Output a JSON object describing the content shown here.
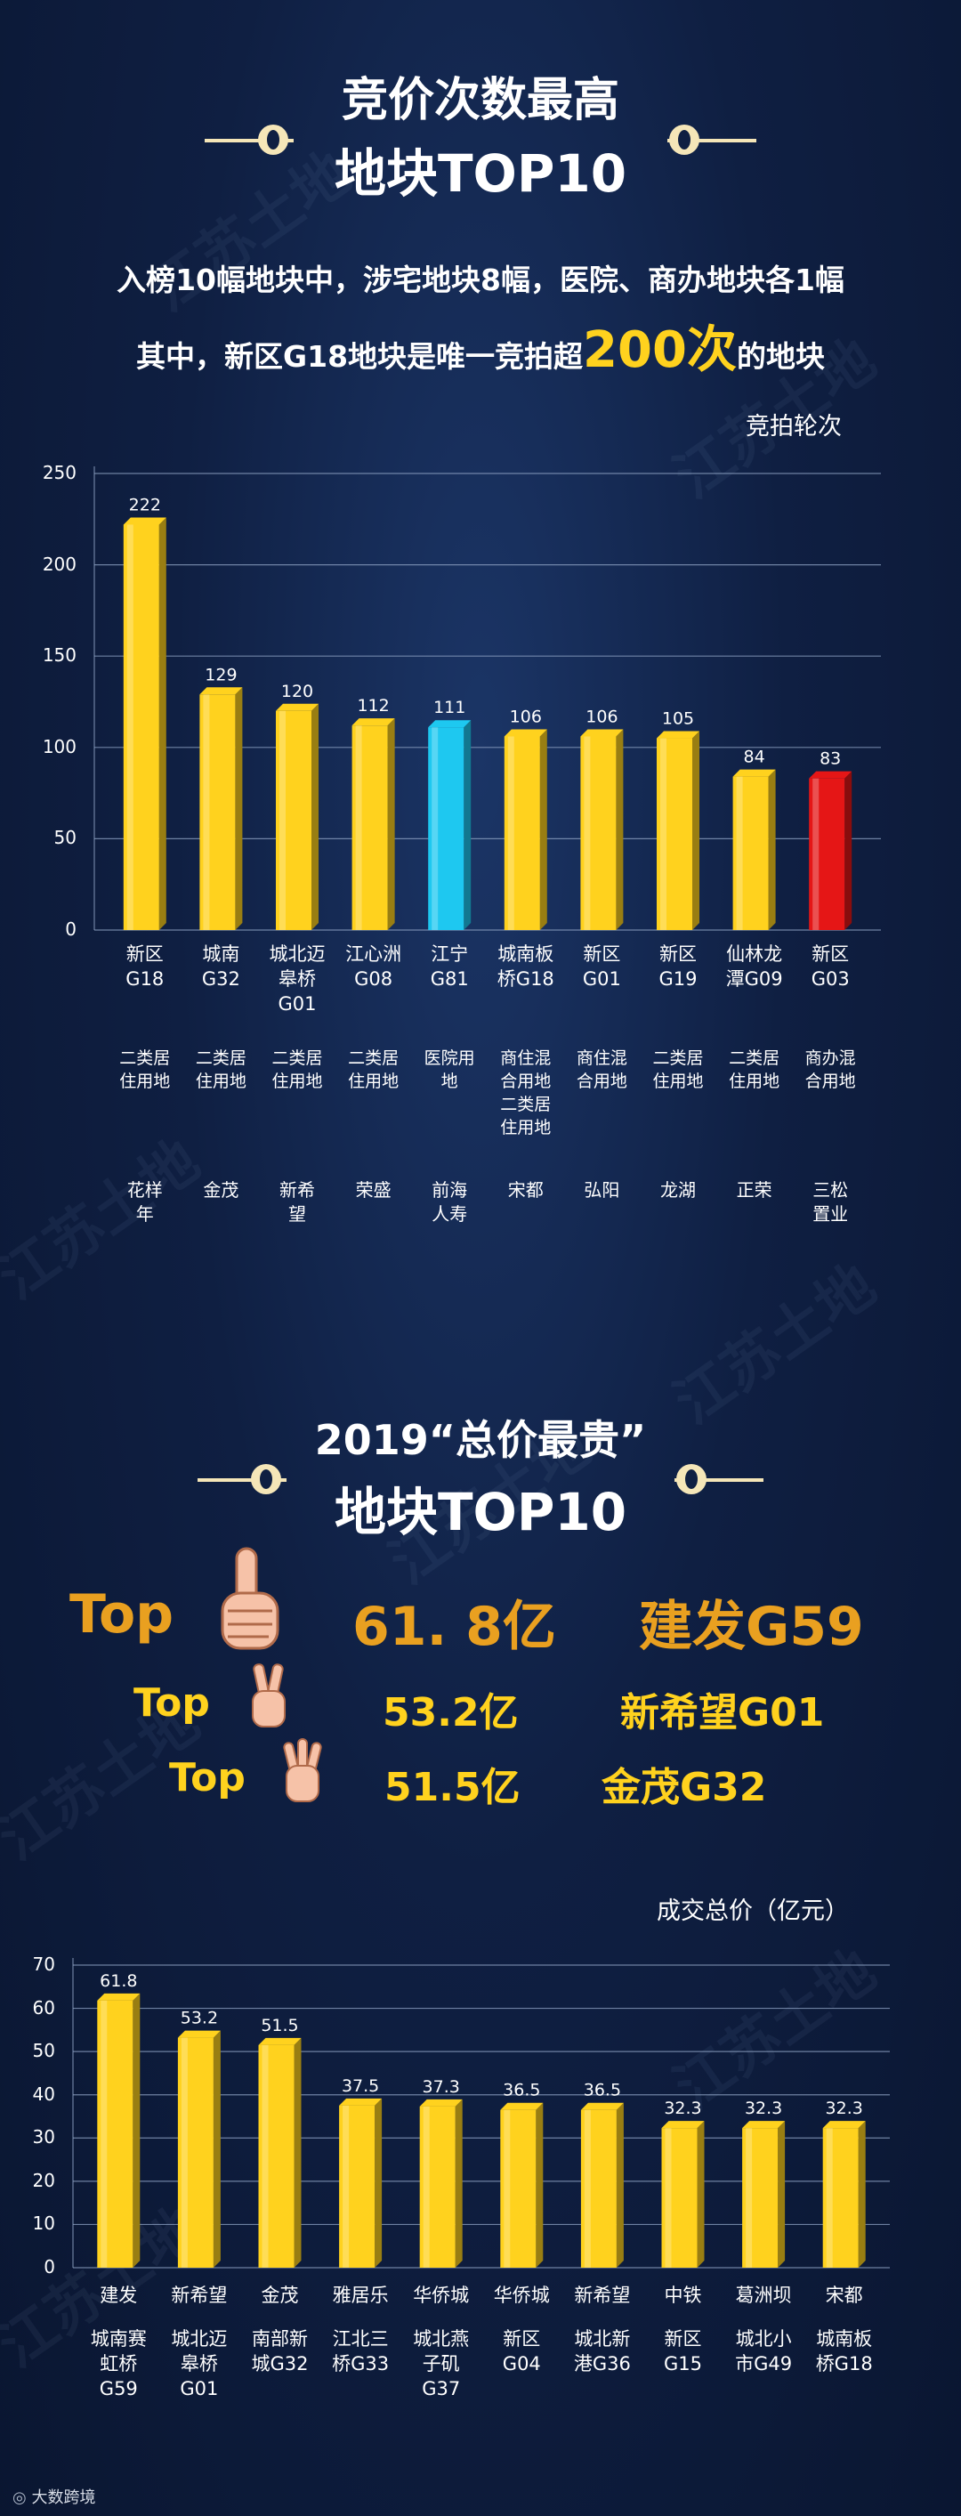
{
  "section1": {
    "title_line1": "竞价次数最高",
    "title_line2": "地块TOP10",
    "intro_line1": "入榜10幅地块中，涉宅地块8幅，医院、商办地块各1幅",
    "intro_line2_pre": "其中，新区G18地块是唯一竞拍超",
    "intro_line2_highlight": "200次",
    "intro_line2_post": "的地块",
    "unit_label": "竞拍轮次"
  },
  "section2": {
    "title_line1": "2019“总价最贵”",
    "title_line2": "地块TOP10",
    "top3": [
      {
        "label": "Top",
        "value": "61. 8亿",
        "name": "建发G59",
        "hand": "one-finger-icon"
      },
      {
        "label": "Top",
        "value": "53.2亿",
        "name": "新希望G01",
        "hand": "two-finger-icon"
      },
      {
        "label": "Top",
        "value": "51.5亿",
        "name": "金茂G32",
        "hand": "three-finger-icon"
      }
    ],
    "unit_label": "成交总价（亿元）"
  },
  "chart_data": [
    {
      "type": "bar",
      "ylabel": "竞拍轮次",
      "ylim": [
        0,
        250
      ],
      "yticks": [
        0,
        50,
        100,
        150,
        200,
        250
      ],
      "categories": [
        "新区\nG18",
        "城南\nG32",
        "城北迈\n皋桥\nG01",
        "江心洲\nG08",
        "江宁\nG81",
        "城南板\n桥G18",
        "新区\nG01",
        "新区\nG19",
        "仙林龙\n潭G09",
        "新区\nG03"
      ],
      "values": [
        222,
        129,
        120,
        112,
        111,
        106,
        106,
        105,
        84,
        83
      ],
      "land_use": [
        "二类居\n住用地",
        "二类居\n住用地",
        "二类居\n住用地",
        "二类居\n住用地",
        "医院用\n地",
        "商住混\n合用地\n二类居\n住用地",
        "商住混\n合用地",
        "二类居\n住用地",
        "二类居\n住用地",
        "商办混\n合用地"
      ],
      "developers": [
        "花样年",
        "金茂",
        "新希望",
        "荣盛",
        "前海人寿",
        "宋都",
        "弘阳",
        "龙湖",
        "正荣",
        "三松置业"
      ],
      "bar_colors": [
        "#ffd21e",
        "#ffd21e",
        "#ffd21e",
        "#ffd21e",
        "#1ec8f0",
        "#ffd21e",
        "#ffd21e",
        "#ffd21e",
        "#ffd21e",
        "#e51616"
      ]
    },
    {
      "type": "bar",
      "ylabel": "成交总价（亿元）",
      "ylim": [
        0,
        70
      ],
      "yticks": [
        0,
        10,
        20,
        30,
        40,
        50,
        60,
        70
      ],
      "developers": [
        "建发",
        "新希望",
        "金茂",
        "雅居乐",
        "华侨城",
        "华侨城",
        "新希望",
        "中铁",
        "葛洲坝",
        "宋都"
      ],
      "categories": [
        "城南赛\n虹桥\nG59",
        "城北迈\n皋桥\nG01",
        "南部新\n城G32",
        "江北三\n桥G33",
        "城北燕\n子矶\nG37",
        "新区\nG04",
        "城北新\n港G36",
        "新区\nG15",
        "城北小\n市G49",
        "城南板\n桥G18"
      ],
      "values": [
        61.8,
        53.2,
        51.5,
        37.5,
        37.3,
        36.5,
        36.5,
        32.3,
        32.3,
        32.3
      ],
      "value_labels": [
        "61.8",
        "53.2",
        "51.5",
        "37.5",
        "37.3",
        "36.5",
        "36.5",
        "32.3",
        "32.3",
        "32.3"
      ],
      "bar_color": "#ffd21e"
    }
  ],
  "watermark": "江苏土地",
  "logo_text": "大数跨境"
}
